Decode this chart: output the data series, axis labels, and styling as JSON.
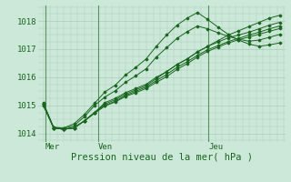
{
  "bg_color": "#cce8d8",
  "grid_color": "#aaccbb",
  "line_color": "#1a6620",
  "marker_color": "#1a6620",
  "xlabel": "Pression niveau de la mer( hPa )",
  "ylim": [
    1013.7,
    1018.55
  ],
  "yticks": [
    1014,
    1015,
    1016,
    1017,
    1018
  ],
  "day_labels": [
    "Mer",
    "Ven",
    "Jeu"
  ],
  "day_positions": [
    0.08,
    2.0,
    6.0
  ],
  "vline_positions": [
    0.08,
    2.0,
    6.0
  ],
  "xlim": [
    -0.2,
    8.8
  ],
  "total_x": 8.6,
  "series": [
    [
      1015.1,
      1014.2,
      1014.15,
      1014.2,
      1014.45,
      1014.75,
      1015.1,
      1015.25,
      1015.45,
      1015.6,
      1015.75,
      1016.0,
      1016.2,
      1016.45,
      1016.65,
      1016.9,
      1017.1,
      1017.3,
      1017.5,
      1017.65,
      1017.8,
      1017.95,
      1018.1,
      1018.2
    ],
    [
      1015.05,
      1014.2,
      1014.15,
      1014.2,
      1014.45,
      1014.75,
      1015.05,
      1015.2,
      1015.4,
      1015.55,
      1015.7,
      1015.95,
      1016.2,
      1016.45,
      1016.65,
      1016.9,
      1017.1,
      1017.25,
      1017.4,
      1017.5,
      1017.6,
      1017.72,
      1017.85,
      1017.95
    ],
    [
      1015.0,
      1014.2,
      1014.15,
      1014.2,
      1014.45,
      1014.75,
      1015.0,
      1015.15,
      1015.35,
      1015.5,
      1015.65,
      1015.88,
      1016.1,
      1016.35,
      1016.55,
      1016.78,
      1016.98,
      1017.12,
      1017.27,
      1017.38,
      1017.5,
      1017.6,
      1017.72,
      1017.82
    ],
    [
      1015.0,
      1014.2,
      1014.15,
      1014.22,
      1014.45,
      1014.72,
      1014.98,
      1015.12,
      1015.32,
      1015.45,
      1015.6,
      1015.82,
      1016.02,
      1016.28,
      1016.48,
      1016.72,
      1016.92,
      1017.07,
      1017.22,
      1017.33,
      1017.43,
      1017.53,
      1017.63,
      1017.73
    ],
    [
      1015.05,
      1014.22,
      1014.18,
      1014.28,
      1014.6,
      1015.0,
      1015.3,
      1015.52,
      1015.82,
      1016.05,
      1016.3,
      1016.72,
      1017.05,
      1017.38,
      1017.62,
      1017.82,
      1017.72,
      1017.58,
      1017.45,
      1017.35,
      1017.28,
      1017.32,
      1017.42,
      1017.52
    ],
    [
      1015.05,
      1014.22,
      1014.2,
      1014.35,
      1014.68,
      1015.08,
      1015.48,
      1015.72,
      1016.08,
      1016.35,
      1016.65,
      1017.1,
      1017.5,
      1017.85,
      1018.1,
      1018.3,
      1018.05,
      1017.78,
      1017.52,
      1017.32,
      1017.18,
      1017.1,
      1017.15,
      1017.22
    ]
  ]
}
